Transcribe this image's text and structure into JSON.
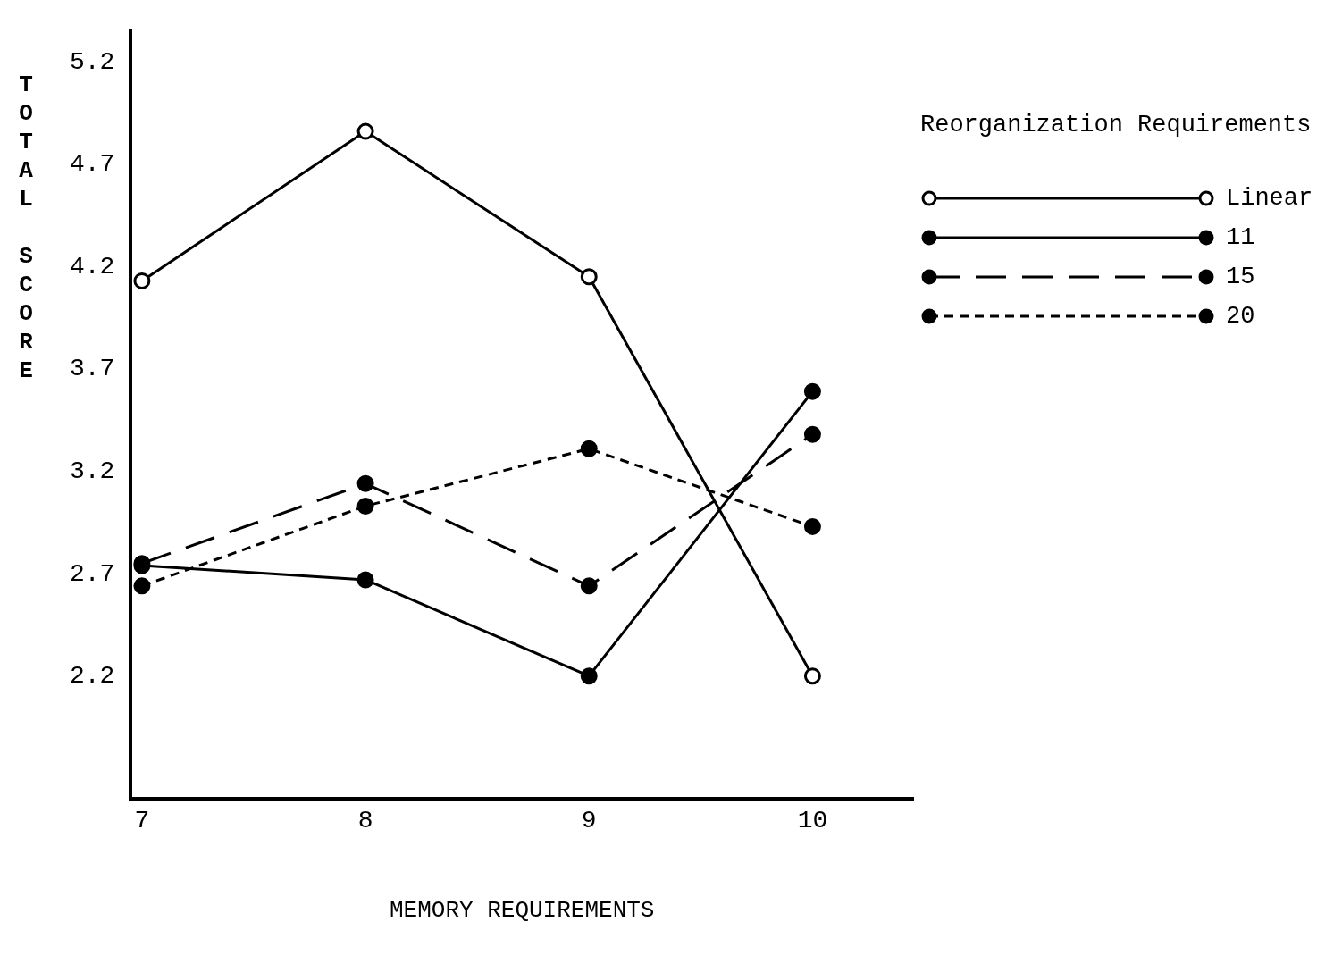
{
  "chart_data": {
    "type": "line",
    "xlabel": "MEMORY REQUIREMENTS",
    "ylabel": "TOTAL SCORE",
    "legend_title": "Reorganization Requirements",
    "legend": "right",
    "grid": false,
    "marker": "circle",
    "x": [
      7,
      8,
      9,
      10
    ],
    "xlim": [
      6.95,
      10.45
    ],
    "xticks": [
      7,
      8,
      9,
      10
    ],
    "ylim": [
      1.6,
      5.35
    ],
    "yticks": [
      2.2,
      2.7,
      3.2,
      3.7,
      4.2,
      4.7,
      5.2
    ],
    "series": [
      {
        "name": "Linear",
        "color": "#000000",
        "line_style": "solid",
        "values": [
          4.13,
          4.86,
          4.15,
          2.2
        ]
      },
      {
        "name": "11",
        "color": "#000000",
        "line_style": "solid",
        "values": [
          2.74,
          2.67,
          2.2,
          3.59
        ]
      },
      {
        "name": "15",
        "color": "#000000",
        "line_style": "dashed",
        "values": [
          2.75,
          3.14,
          2.64,
          3.38
        ]
      },
      {
        "name": "20",
        "color": "#000000",
        "line_style": "dotted",
        "values": [
          2.64,
          3.03,
          3.31,
          2.93
        ]
      }
    ]
  }
}
